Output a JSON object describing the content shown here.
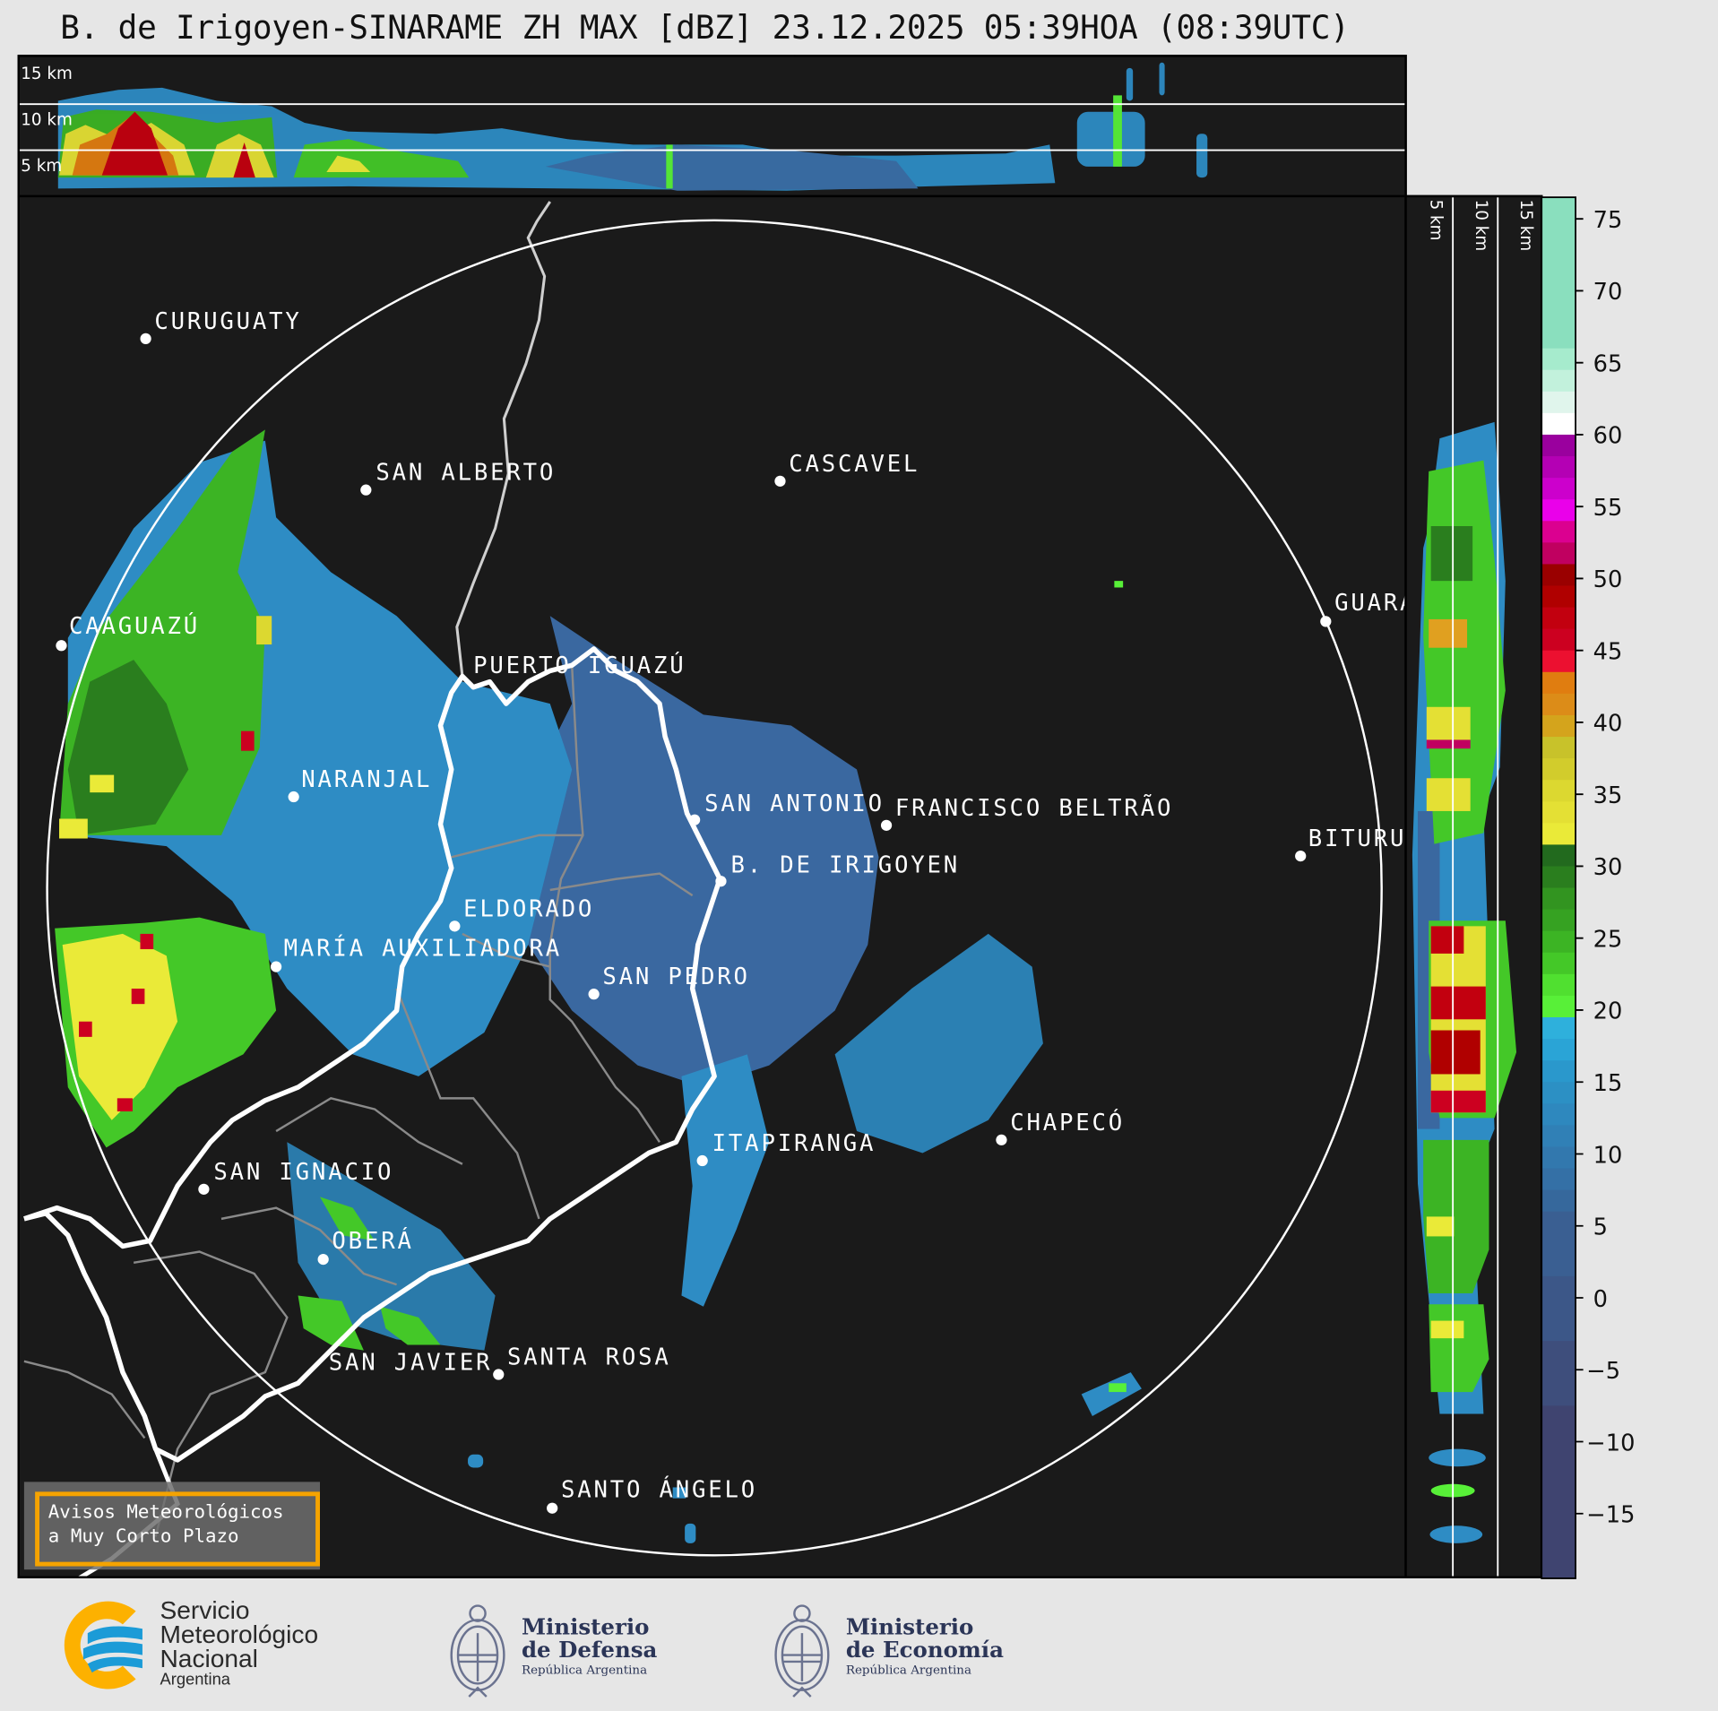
{
  "title": "B. de Irigoyen-SINARAME ZH MAX [dBZ] 23.12.2025 05:39HOA (08:39UTC)",
  "top_panel": {
    "labels": [
      "15 km",
      "10 km",
      "5 km"
    ]
  },
  "side_panel": {
    "labels": [
      "5 km",
      "10 km",
      "15 km"
    ]
  },
  "cities": [
    {
      "name": "CURUGUATY"
    },
    {
      "name": "SAN ALBERTO"
    },
    {
      "name": "CASCAVEL"
    },
    {
      "name": "CAAGUAZÚ"
    },
    {
      "name": "GUARA"
    },
    {
      "name": "PUERTO IGUAZÚ"
    },
    {
      "name": "NARANJAL"
    },
    {
      "name": "SAN ANTONIO"
    },
    {
      "name": "FRANCISCO BELTRÃO"
    },
    {
      "name": "BITURU"
    },
    {
      "name": "B. DE IRIGOYEN"
    },
    {
      "name": "ELDORADO"
    },
    {
      "name": "MARÍA AUXILIADORA"
    },
    {
      "name": "SAN PEDRO"
    },
    {
      "name": "CHAPECÓ"
    },
    {
      "name": "ITAPIRANGA"
    },
    {
      "name": "SAN IGNACIO"
    },
    {
      "name": "OBERÁ"
    },
    {
      "name": "SAN JAVIER"
    },
    {
      "name": "SANTA ROSA"
    },
    {
      "name": "SANTO ÁNGELO"
    }
  ],
  "colorbar": {
    "unit": "dBZ",
    "range": [
      -19.5,
      76.5
    ],
    "ticks": [
      "75",
      "70",
      "65",
      "60",
      "55",
      "50",
      "45",
      "40",
      "35",
      "30",
      "25",
      "20",
      "15",
      "10",
      "5",
      "0",
      "−5",
      "−10",
      "−15"
    ],
    "tick_values": [
      75,
      70,
      65,
      60,
      55,
      50,
      45,
      40,
      35,
      30,
      25,
      20,
      15,
      10,
      5,
      0,
      -5,
      -10,
      -15
    ],
    "steps": [
      [
        66,
        "#8adfbe"
      ],
      [
        64.5,
        "#a6ebcd"
      ],
      [
        63,
        "#c2f1dc"
      ],
      [
        61.5,
        "#e0f5ec"
      ],
      [
        60,
        "#ffffff"
      ],
      [
        58.5,
        "#9a009e"
      ],
      [
        57,
        "#b400b4"
      ],
      [
        55.5,
        "#cc00cc"
      ],
      [
        54,
        "#ea00ea"
      ],
      [
        52.5,
        "#db0090"
      ],
      [
        51,
        "#c00060"
      ],
      [
        49.5,
        "#9a0000"
      ],
      [
        48,
        "#b00000"
      ],
      [
        46.5,
        "#c2000f"
      ],
      [
        45,
        "#cc0020"
      ],
      [
        43.5,
        "#ec1030"
      ],
      [
        42,
        "#e07d10"
      ],
      [
        40.5,
        "#dc8c18"
      ],
      [
        39,
        "#d4a41c"
      ],
      [
        37.5,
        "#c8c22a"
      ],
      [
        36,
        "#d2cc2c"
      ],
      [
        34.5,
        "#dcd830"
      ],
      [
        33,
        "#e4e034"
      ],
      [
        31.5,
        "#eaea38"
      ],
      [
        30,
        "#226a1e"
      ],
      [
        28.5,
        "#2a7e1e"
      ],
      [
        27,
        "#329420"
      ],
      [
        25.5,
        "#36a222"
      ],
      [
        24,
        "#3cb424"
      ],
      [
        22.5,
        "#44c828"
      ],
      [
        21,
        "#50e030"
      ],
      [
        19.5,
        "#58f038"
      ],
      [
        18,
        "#2eb0dc"
      ],
      [
        16.5,
        "#2aa4d6"
      ],
      [
        15,
        "#2a98cc"
      ],
      [
        13.5,
        "#2c90c4"
      ],
      [
        12,
        "#2e88be"
      ],
      [
        10.5,
        "#3080b6"
      ],
      [
        9,
        "#3278ae"
      ],
      [
        7.5,
        "#3470a6"
      ],
      [
        6,
        "#36689c"
      ],
      [
        1.5,
        "#3a5f92"
      ],
      [
        -3,
        "#3c5788"
      ],
      [
        -7.5,
        "#3e4e7c"
      ],
      [
        -12,
        "#3f4470"
      ]
    ]
  },
  "warning_box": {
    "line1": "Avisos Meteorológicos",
    "line2": "a Muy Corto Plazo",
    "border_color": "#f5a300"
  },
  "logos": {
    "smn": {
      "line1": "Servicio",
      "line2": "Meteorológico",
      "line3": "Nacional",
      "line4": "Argentina"
    },
    "defensa": {
      "line1": "Ministerio",
      "line2": "de Defensa",
      "line3": "República Argentina"
    },
    "economia": {
      "line1": "Ministerio",
      "line2": "de Economía",
      "line3": "República Argentina"
    }
  }
}
